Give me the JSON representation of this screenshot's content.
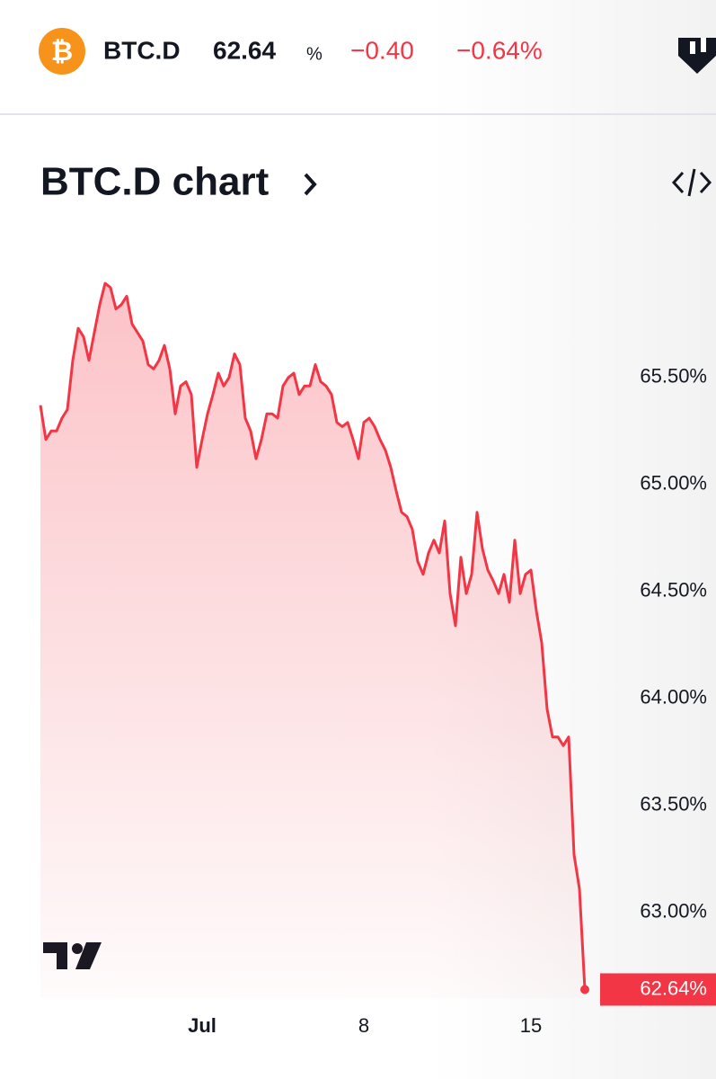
{
  "header": {
    "symbol_icon": "₿",
    "ticker": "BTC.D",
    "price": "62.64",
    "unit": "%",
    "change": "−0.40",
    "change_percent": "−0.64%"
  },
  "chart_data": {
    "type": "line",
    "title": "BTC.D chart",
    "categories": [
      null,
      null,
      null,
      null,
      null,
      null,
      null,
      null,
      null,
      null,
      null,
      null,
      null,
      null,
      null,
      null,
      null,
      null,
      null,
      null,
      null,
      null,
      null,
      null,
      null,
      null,
      null,
      null,
      null,
      null,
      "Jul",
      null,
      null,
      null,
      null,
      null,
      null,
      null,
      null,
      null,
      null,
      null,
      null,
      null,
      null,
      null,
      null,
      null,
      null,
      null,
      null,
      null,
      null,
      null,
      null,
      null,
      null,
      null,
      null,
      null,
      "8",
      null,
      null,
      null,
      null,
      null,
      null,
      null,
      null,
      null,
      null,
      null,
      null,
      null,
      null,
      null,
      null,
      null,
      null,
      null,
      null,
      null,
      null,
      null,
      null,
      null,
      null,
      null,
      null,
      null,
      null,
      "15",
      null,
      null,
      null,
      null,
      null,
      null,
      null,
      null,
      null,
      null
    ],
    "values": [
      65.37,
      65.21,
      65.25,
      65.25,
      65.31,
      65.35,
      65.58,
      65.73,
      65.69,
      65.58,
      65.71,
      65.84,
      65.94,
      65.92,
      65.82,
      65.84,
      65.88,
      65.75,
      65.71,
      65.67,
      65.56,
      65.54,
      65.58,
      65.65,
      65.54,
      65.33,
      65.46,
      65.48,
      65.42,
      65.08,
      65.21,
      65.33,
      65.42,
      65.52,
      65.46,
      65.5,
      65.61,
      65.56,
      65.31,
      65.25,
      65.12,
      65.21,
      65.33,
      65.33,
      65.31,
      65.46,
      65.5,
      65.52,
      65.42,
      65.46,
      65.46,
      65.56,
      65.48,
      65.46,
      65.42,
      65.29,
      65.27,
      65.29,
      65.21,
      65.12,
      65.29,
      65.31,
      65.27,
      65.21,
      65.16,
      65.08,
      64.97,
      64.87,
      64.85,
      64.79,
      64.64,
      64.58,
      64.68,
      64.74,
      64.68,
      64.83,
      64.49,
      64.34,
      64.66,
      64.49,
      64.58,
      64.87,
      64.7,
      64.6,
      64.55,
      64.49,
      64.58,
      64.45,
      64.74,
      64.49,
      64.58,
      64.6,
      64.41,
      64.26,
      63.95,
      63.82,
      63.82,
      63.78,
      63.82,
      63.27,
      63.11,
      62.64
    ],
    "current_label": "62.64%",
    "color": "#f23645",
    "ylim": [
      62.6,
      66.1
    ],
    "yticks": [
      {
        "value": 63,
        "label": "63.00%"
      },
      {
        "value": 63.5,
        "label": "63.50%"
      },
      {
        "value": 64,
        "label": "64.00%"
      },
      {
        "value": 64.5,
        "label": "64.50%"
      },
      {
        "value": 65,
        "label": "65.00%"
      },
      {
        "value": 65.5,
        "label": "65.50%"
      }
    ],
    "grid": false
  }
}
